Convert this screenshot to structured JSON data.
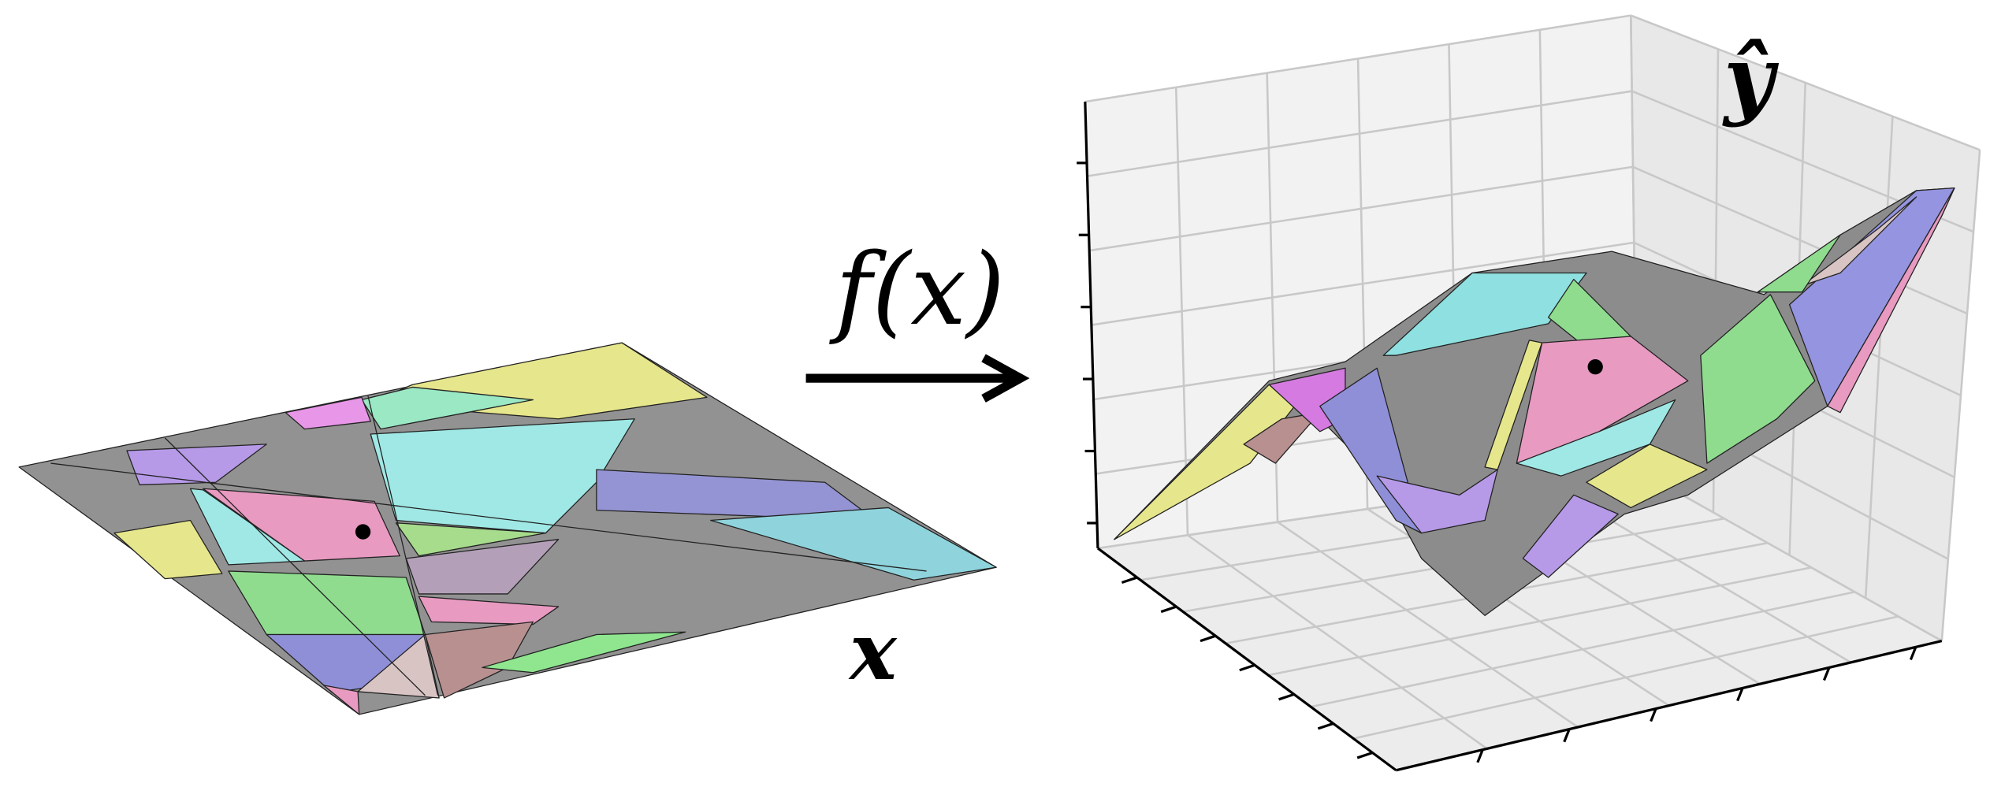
{
  "labels": {
    "function": "f(x)",
    "input": "x",
    "output": "ŷ"
  }
}
